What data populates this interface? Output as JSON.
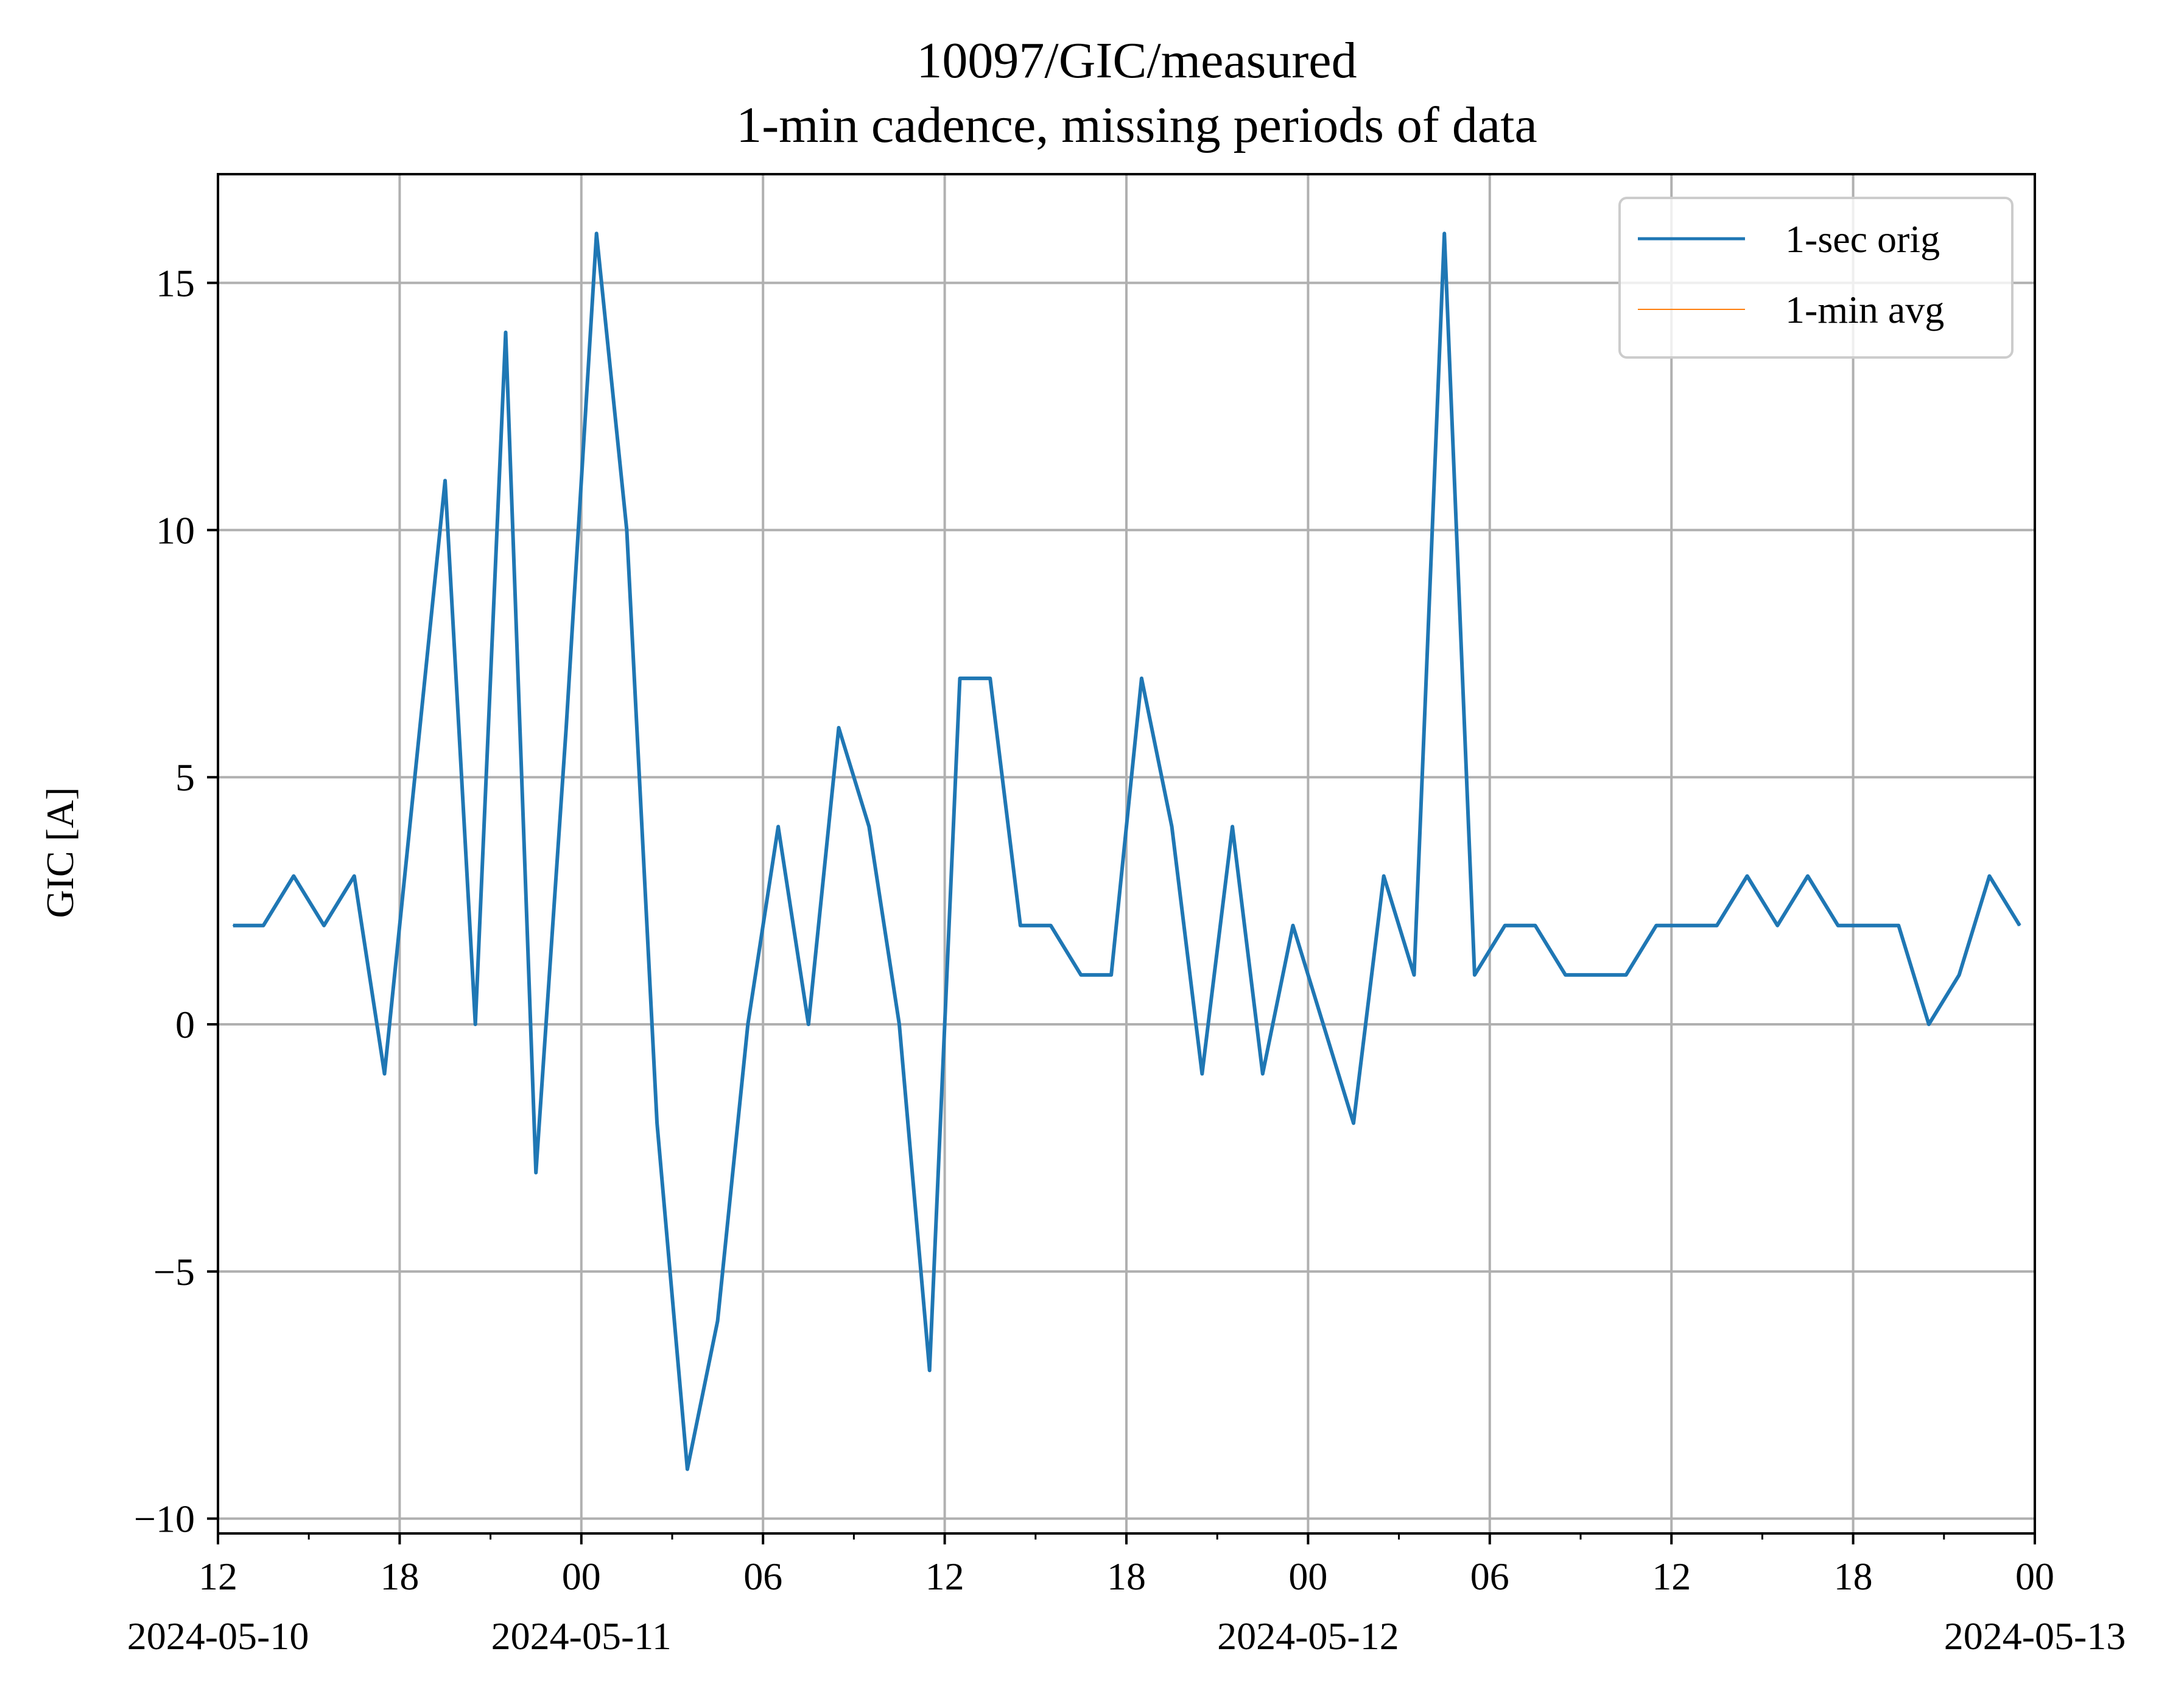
{
  "chart_data": {
    "type": "line",
    "title": "10097/GIC/measured",
    "subtitle": "1-min cadence, missing periods of data",
    "xlabel": "",
    "ylabel": "GIC [A]",
    "xlim": [
      "2024-05-10 12:00",
      "2024-05-13 00:00"
    ],
    "ylim": [
      -10.3,
      17.2
    ],
    "grid": true,
    "legend_position": "top-right",
    "x_ticks": [
      {
        "time": "2024-05-10 12:00",
        "label": "12",
        "date_label": "2024-05-10"
      },
      {
        "time": "2024-05-10 18:00",
        "label": "18",
        "date_label": ""
      },
      {
        "time": "2024-05-11 00:00",
        "label": "00",
        "date_label": "2024-05-11"
      },
      {
        "time": "2024-05-11 06:00",
        "label": "06",
        "date_label": ""
      },
      {
        "time": "2024-05-11 12:00",
        "label": "12",
        "date_label": ""
      },
      {
        "time": "2024-05-11 18:00",
        "label": "18",
        "date_label": ""
      },
      {
        "time": "2024-05-12 00:00",
        "label": "00",
        "date_label": "2024-05-12"
      },
      {
        "time": "2024-05-12 06:00",
        "label": "06",
        "date_label": ""
      },
      {
        "time": "2024-05-12 12:00",
        "label": "12",
        "date_label": ""
      },
      {
        "time": "2024-05-12 18:00",
        "label": "18",
        "date_label": ""
      },
      {
        "time": "2024-05-13 00:00",
        "label": "00",
        "date_label": "2024-05-13"
      }
    ],
    "x_minor_ticks": [
      "2024-05-10 15:00",
      "2024-05-10 21:00",
      "2024-05-11 03:00",
      "2024-05-11 09:00",
      "2024-05-11 15:00",
      "2024-05-11 21:00",
      "2024-05-12 03:00",
      "2024-05-12 09:00",
      "2024-05-12 15:00",
      "2024-05-12 21:00"
    ],
    "y_ticks": [
      {
        "value": -10,
        "label": "−10"
      },
      {
        "value": -5,
        "label": "−5"
      },
      {
        "value": 0,
        "label": "0"
      },
      {
        "value": 5,
        "label": "5"
      },
      {
        "value": 10,
        "label": "10"
      },
      {
        "value": 15,
        "label": "15"
      }
    ],
    "series": [
      {
        "name": "1-sec orig",
        "color": "#1f77b4",
        "x": [
          "2024-05-10 12:30",
          "2024-05-10 13:30",
          "2024-05-10 14:30",
          "2024-05-10 15:30",
          "2024-05-10 16:30",
          "2024-05-10 17:30",
          "2024-05-10 18:30",
          "2024-05-10 19:30",
          "2024-05-10 20:30",
          "2024-05-10 21:30",
          "2024-05-10 22:30",
          "2024-05-10 23:30",
          "2024-05-11 00:30",
          "2024-05-11 01:30",
          "2024-05-11 02:30",
          "2024-05-11 03:30",
          "2024-05-11 04:30",
          "2024-05-11 05:30",
          "2024-05-11 06:30",
          "2024-05-11 07:30",
          "2024-05-11 08:30",
          "2024-05-11 09:30",
          "2024-05-11 10:30",
          "2024-05-11 11:30",
          "2024-05-11 12:30",
          "2024-05-11 13:30",
          "2024-05-11 14:30",
          "2024-05-11 15:30",
          "2024-05-11 16:30",
          "2024-05-11 17:30",
          "2024-05-11 18:30",
          "2024-05-11 19:30",
          "2024-05-11 20:30",
          "2024-05-11 21:30",
          "2024-05-11 22:30",
          "2024-05-11 23:30",
          "2024-05-12 00:30",
          "2024-05-12 01:30",
          "2024-05-12 02:30",
          "2024-05-12 03:30",
          "2024-05-12 04:30",
          "2024-05-12 05:30",
          "2024-05-12 06:30",
          "2024-05-12 07:30",
          "2024-05-12 08:30",
          "2024-05-12 09:30",
          "2024-05-12 10:30",
          "2024-05-12 11:30",
          "2024-05-12 12:30",
          "2024-05-12 13:30",
          "2024-05-12 14:30",
          "2024-05-12 15:30",
          "2024-05-12 16:30",
          "2024-05-12 17:30",
          "2024-05-12 18:30",
          "2024-05-12 19:30",
          "2024-05-12 20:30",
          "2024-05-12 21:30",
          "2024-05-12 22:30",
          "2024-05-12 23:30"
        ],
        "y": [
          2,
          2,
          3,
          2,
          3,
          -1,
          5,
          11,
          0,
          14,
          -3,
          6,
          16,
          10,
          -2,
          -9,
          -6,
          0,
          4,
          0,
          6,
          4,
          0,
          -7,
          7,
          7,
          2,
          2,
          1,
          1,
          7,
          4,
          -1,
          4,
          -1,
          2,
          0,
          -2,
          3,
          1,
          16,
          1,
          2,
          2,
          1,
          1,
          1,
          2,
          2,
          2,
          3,
          2,
          3,
          2,
          2,
          2,
          0,
          1,
          3,
          2
        ]
      },
      {
        "name": "1-min avg",
        "color": "#ff7f0e",
        "x": [],
        "y": []
      }
    ]
  }
}
